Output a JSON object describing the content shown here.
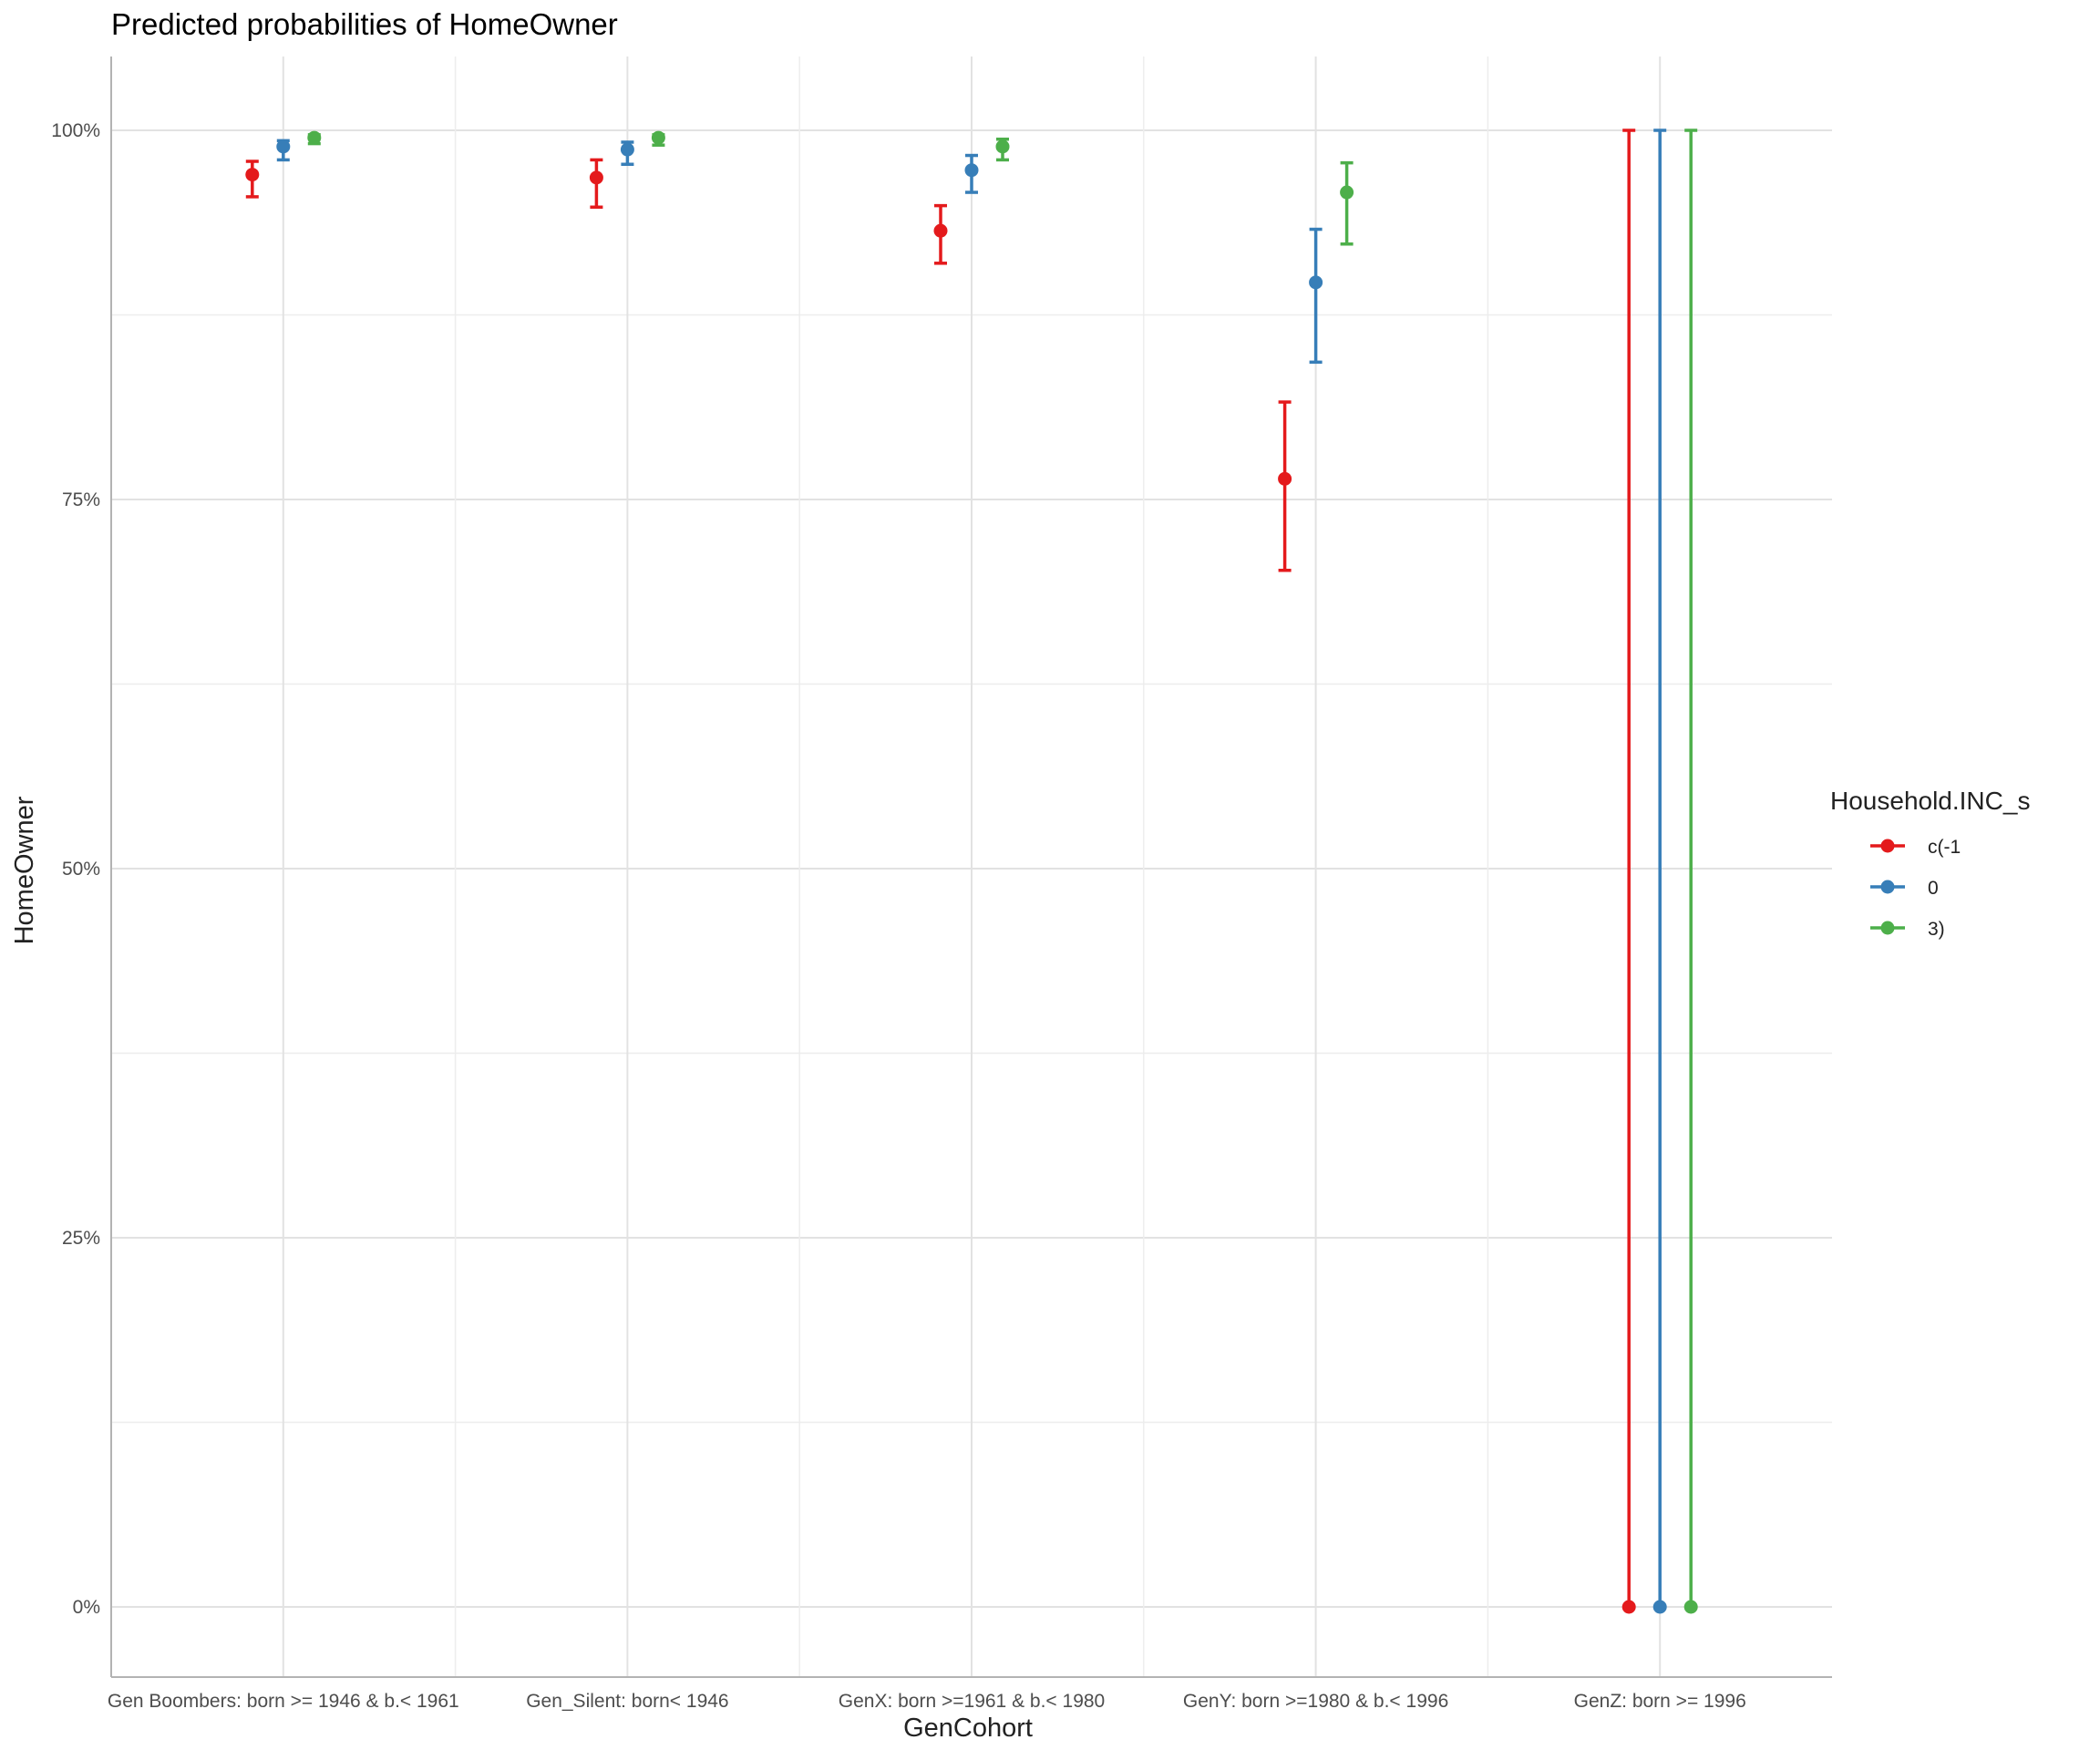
{
  "chart_data": {
    "type": "scatter",
    "title": "Predicted probabilities of HomeOwner",
    "xlabel": "GenCohort",
    "ylabel": "HomeOwner",
    "categories": [
      "Gen Boombers: born >= 1946 & b.< 1961",
      "Gen_Silent: born< 1946",
      "GenX: born >=1961 & b.< 1980",
      "GenY: born >=1980 & b.< 1996",
      "GenZ: born >= 1996"
    ],
    "yticks": [
      0,
      0.25,
      0.5,
      0.75,
      1.0
    ],
    "ytick_labels": [
      "0%",
      "25%",
      "50%",
      "75%",
      "100%"
    ],
    "ylim": [
      -0.05,
      1.05
    ],
    "grid": true,
    "legend": {
      "title": "Household.INC_s",
      "position": "right"
    },
    "series": [
      {
        "name": "c(-1",
        "color": "#E41A1C",
        "values": [
          0.97,
          0.968,
          0.932,
          0.764,
          0.0
        ],
        "ci_low": [
          0.955,
          0.948,
          0.91,
          0.702,
          0.0
        ],
        "ci_high": [
          0.979,
          0.98,
          0.949,
          0.816,
          1.0
        ]
      },
      {
        "name": "0",
        "color": "#377EB8",
        "values": [
          0.989,
          0.987,
          0.973,
          0.897,
          0.0
        ],
        "ci_low": [
          0.98,
          0.977,
          0.958,
          0.843,
          0.0
        ],
        "ci_high": [
          0.993,
          0.992,
          0.983,
          0.933,
          1.0
        ]
      },
      {
        "name": "3)",
        "color": "#4DAF4A",
        "values": [
          0.995,
          0.995,
          0.989,
          0.958,
          0.0
        ],
        "ci_low": [
          0.991,
          0.99,
          0.98,
          0.923,
          0.0
        ],
        "ci_high": [
          0.997,
          0.997,
          0.994,
          0.978,
          1.0
        ]
      }
    ]
  }
}
